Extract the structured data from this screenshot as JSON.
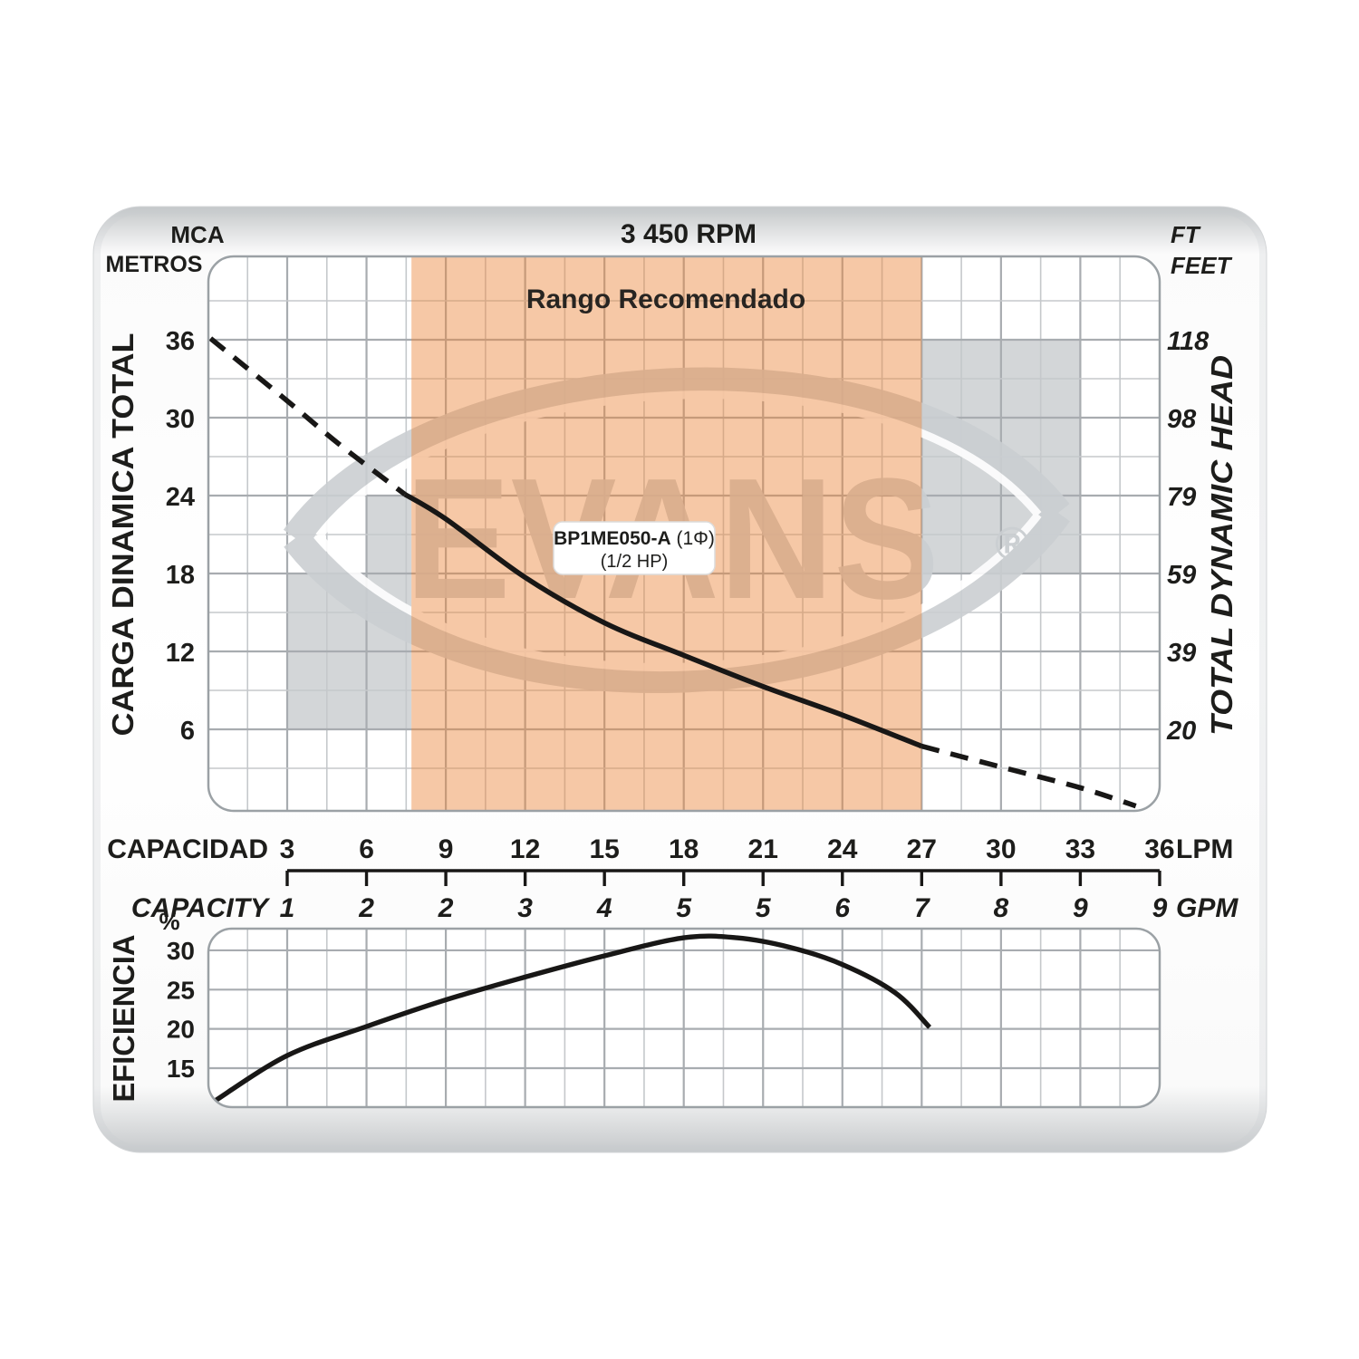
{
  "header": {
    "left_unit_line1": "MCA",
    "left_unit_line2": "METROS",
    "rpm_title": "3 450 RPM",
    "right_unit_line1": "FT",
    "right_unit_line2": "FEET"
  },
  "top_chart": {
    "left_axis_title": "CARGA DINAMICA TOTAL",
    "right_axis_title": "TOTAL DYNAMIC HEAD",
    "recommended_label": "Rango Recomendado",
    "model": {
      "line1_bold": "BP1ME050-A",
      "line1_rest": " (1Φ)",
      "line2": "(1/2 HP)"
    }
  },
  "capacity_axis": {
    "label_top": "CAPACIDAD",
    "label_bottom": "CAPACITY",
    "unit_top": "LPM",
    "unit_bottom": "GPM"
  },
  "eff_chart": {
    "axis_title": "EFICIENCIA",
    "unit": "%"
  },
  "watermark": {
    "text": "EVANS",
    "reg": "®"
  },
  "colors": {
    "recommended_band": "#F6C8A6",
    "gray_zone": "#D3D6D8",
    "curve": "#181716",
    "grid_major": "#A8ACB0",
    "grid_minor": "#C5C8CB",
    "watermark_gray": "#CBCFD2"
  },
  "chart_data": [
    {
      "type": "line",
      "name": "head_vs_capacity",
      "title": "3 450 RPM",
      "xlabel": "CAPACIDAD / CAPACITY",
      "ylabel": "CARGA DINAMICA TOTAL / TOTAL DYNAMIC HEAD",
      "x_ticks_lpm": [
        3,
        6,
        9,
        12,
        15,
        18,
        21,
        24,
        27,
        30,
        33,
        36
      ],
      "x_ticks_gpm": [
        1,
        2,
        2,
        3,
        4,
        5,
        5,
        6,
        7,
        8,
        9,
        9
      ],
      "y_ticks_m": [
        36,
        30,
        24,
        18,
        12,
        6
      ],
      "y_ticks_ft": [
        118,
        98,
        79,
        59,
        39,
        20
      ],
      "xlim_lpm": [
        0,
        36
      ],
      "ylim_m": [
        0,
        42.5
      ],
      "recommended_range_lpm": [
        7.7,
        27
      ],
      "segments": [
        {
          "style": "dashed",
          "points_lpm_m": [
            [
              0.1,
              36.1
            ],
            [
              3,
              31.3
            ],
            [
              5,
              27.9
            ],
            [
              7.45,
              24.1
            ]
          ]
        },
        {
          "style": "solid",
          "points_lpm_m": [
            [
              7.45,
              24.1
            ],
            [
              9,
              22.2
            ],
            [
              12,
              17.7
            ],
            [
              15,
              14.2
            ],
            [
              18,
              11.7
            ],
            [
              21,
              9.3
            ],
            [
              24,
              7.1
            ],
            [
              27,
              4.7
            ]
          ]
        },
        {
          "style": "dashed",
          "points_lpm_m": [
            [
              27,
              4.7
            ],
            [
              30,
              3.1
            ],
            [
              33,
              1.5
            ],
            [
              35.1,
              0.1
            ]
          ]
        }
      ],
      "gray_zones_lpm_m": [
        {
          "lpm": [
            3,
            6
          ],
          "m": [
            6,
            18
          ]
        },
        {
          "lpm": [
            6,
            7.7
          ],
          "m": [
            6,
            24
          ]
        },
        {
          "lpm": [
            27,
            33
          ],
          "m": [
            18,
            36
          ]
        }
      ]
    },
    {
      "type": "line",
      "name": "efficiency_vs_capacity",
      "ylabel": "EFICIENCIA (%)",
      "y_ticks_pct": [
        30,
        25,
        20,
        15
      ],
      "ylim_pct": [
        10,
        35
      ],
      "points_lpm_pct": [
        [
          0.2,
          10.7
        ],
        [
          3,
          16.6
        ],
        [
          6,
          20.3
        ],
        [
          9,
          23.7
        ],
        [
          12,
          26.6
        ],
        [
          15,
          29.3
        ],
        [
          18,
          31.6
        ],
        [
          20,
          31.6
        ],
        [
          22,
          30.4
        ],
        [
          24,
          28.2
        ],
        [
          26,
          24.6
        ],
        [
          27.3,
          20.2
        ]
      ]
    }
  ]
}
